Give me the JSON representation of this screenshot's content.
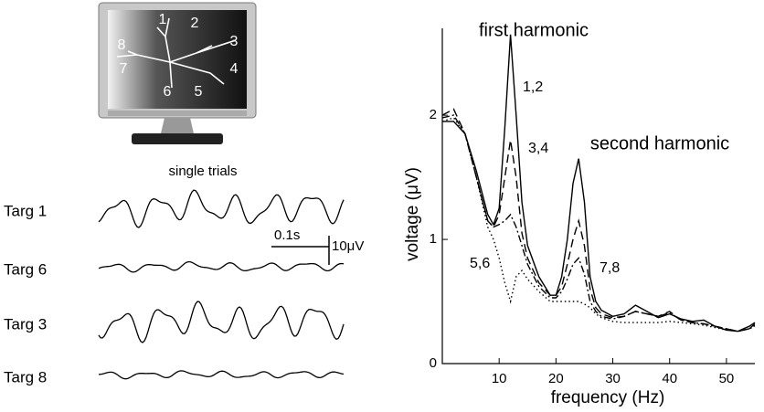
{
  "figure": {
    "monitor_labels": [
      "1",
      "2",
      "3",
      "4",
      "5",
      "6",
      "7",
      "8"
    ],
    "trials_title": "single trials",
    "traces": [
      "Targ 1",
      "Targ 6",
      "Targ 3",
      "Targ 8"
    ],
    "scale_time": "0.1s",
    "scale_voltage": "10μV"
  },
  "chart_data": {
    "type": "line",
    "xlabel": "frequency (Hz)",
    "ylabel": "voltage (μV)",
    "annotations": [
      "first harmonic",
      "second harmonic"
    ],
    "xlim": [
      0,
      55
    ],
    "ylim": [
      0,
      2.7
    ],
    "xticks": [
      10,
      20,
      30,
      40,
      50
    ],
    "yticks": [
      0,
      1,
      2
    ],
    "x": [
      0,
      2,
      4,
      6,
      8,
      9,
      10,
      11,
      12,
      13,
      14,
      15,
      17,
      19,
      20,
      21,
      22,
      23,
      24,
      25,
      26,
      27,
      28,
      30,
      32,
      34,
      36,
      38,
      40,
      42,
      44,
      46,
      48,
      50,
      52,
      54,
      55
    ],
    "series": [
      {
        "name": "1,2",
        "color": "#000000",
        "dash": "none",
        "values": [
          1.95,
          1.95,
          1.85,
          1.55,
          1.2,
          1.12,
          1.25,
          1.9,
          2.65,
          2.0,
          1.3,
          0.95,
          0.7,
          0.55,
          0.55,
          0.7,
          1.0,
          1.45,
          1.65,
          1.3,
          0.7,
          0.5,
          0.43,
          0.38,
          0.4,
          0.47,
          0.42,
          0.37,
          0.4,
          0.36,
          0.34,
          0.35,
          0.3,
          0.27,
          0.26,
          0.3,
          0.33
        ]
      },
      {
        "name": "3,4",
        "color": "#000000",
        "dash": "9,5",
        "values": [
          2.0,
          2.05,
          1.85,
          1.5,
          1.15,
          1.1,
          1.2,
          1.5,
          1.8,
          1.5,
          1.05,
          0.85,
          0.65,
          0.55,
          0.55,
          0.62,
          0.8,
          1.0,
          1.15,
          0.95,
          0.6,
          0.45,
          0.4,
          0.37,
          0.38,
          0.42,
          0.4,
          0.38,
          0.42,
          0.35,
          0.33,
          0.32,
          0.3,
          0.28,
          0.26,
          0.28,
          0.32
        ]
      },
      {
        "name": "5,6",
        "color": "#000000",
        "dash": "1.5,3",
        "values": [
          1.95,
          1.98,
          1.85,
          1.5,
          1.1,
          1.0,
          0.85,
          0.65,
          0.5,
          0.7,
          0.75,
          0.68,
          0.58,
          0.5,
          0.5,
          0.5,
          0.5,
          0.5,
          0.5,
          0.48,
          0.45,
          0.4,
          0.37,
          0.34,
          0.33,
          0.33,
          0.33,
          0.33,
          0.34,
          0.33,
          0.32,
          0.31,
          0.29,
          0.27,
          0.26,
          0.28,
          0.3
        ]
      },
      {
        "name": "7,8",
        "color": "#000000",
        "dash": "8,3,2,3",
        "values": [
          1.98,
          2.0,
          1.85,
          1.5,
          1.15,
          1.1,
          1.12,
          1.15,
          1.2,
          1.1,
          0.95,
          0.8,
          0.62,
          0.53,
          0.53,
          0.58,
          0.68,
          0.8,
          0.85,
          0.72,
          0.5,
          0.42,
          0.38,
          0.36,
          0.38,
          0.42,
          0.4,
          0.38,
          0.41,
          0.35,
          0.33,
          0.32,
          0.3,
          0.28,
          0.26,
          0.28,
          0.31
        ]
      }
    ]
  }
}
